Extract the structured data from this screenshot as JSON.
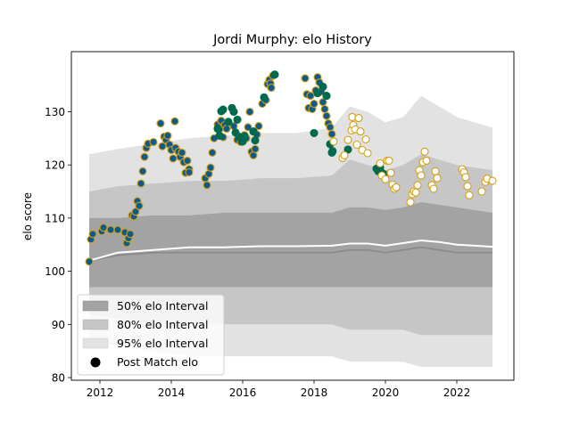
{
  "chart_data": {
    "type": "scatter",
    "title": "Jordi Murphy: elo History",
    "xlabel": "",
    "ylabel": "elo score",
    "xlim": [
      2011.2,
      2023.6
    ],
    "ylim": [
      79.5,
      141.3
    ],
    "x_ticks": [
      2012,
      2014,
      2016,
      2018,
      2020,
      2022
    ],
    "y_ticks": [
      80,
      90,
      100,
      110,
      120,
      130
    ],
    "grid": false,
    "legend": {
      "placement": "lower-left",
      "entries": [
        "50% elo Interval",
        "80% elo Interval",
        "95% elo Interval",
        "Post Match elo"
      ]
    },
    "colors": {
      "band_50": "#a3a3a3",
      "band_80": "#c6c6c6",
      "band_95": "#e2e2e2",
      "median_line": "#888888",
      "mean_line": "#ffffff",
      "team_a_fill": "#0e5a8a",
      "team_a_edge": "#d4a017",
      "team_b_fill": "#006a4e",
      "team_c_fill": "#ffffff",
      "team_c_edge": "#d4a017"
    },
    "bands": {
      "x": [
        2011.7,
        2012.5,
        2013.5,
        2014.5,
        2015.5,
        2016.5,
        2017.5,
        2018.5,
        2019.0,
        2019.5,
        2020.0,
        2020.5,
        2021.0,
        2021.5,
        2022.0,
        2022.5,
        2023.0
      ],
      "p95_hi": [
        122,
        123,
        124,
        125,
        125.5,
        126,
        126,
        127,
        131,
        130,
        128,
        129,
        133,
        131,
        129,
        128,
        127
      ],
      "p80_hi": [
        115,
        116,
        116.5,
        117,
        117,
        117.5,
        117.5,
        118,
        121,
        120,
        119,
        120,
        122,
        121,
        120,
        119.5,
        119
      ],
      "p50_hi": [
        110,
        110,
        110.5,
        110.5,
        111,
        111,
        111,
        111,
        112,
        112,
        111.5,
        112,
        113,
        112.5,
        112,
        111.5,
        111
      ],
      "p50_lo": [
        97,
        97,
        97,
        97,
        97,
        97,
        97,
        97,
        97,
        97,
        97,
        97,
        97,
        97,
        97,
        97,
        97
      ],
      "p80_lo": [
        92,
        91,
        90,
        90,
        90,
        90,
        90,
        90,
        89,
        89,
        89,
        89,
        88,
        88,
        88,
        88,
        88
      ],
      "p95_lo": [
        87,
        86,
        85,
        84,
        84,
        84,
        84,
        84,
        83,
        83,
        83,
        83,
        82,
        82,
        82,
        82,
        82
      ],
      "median": [
        102,
        103,
        103.5,
        103.5,
        103.5,
        103.5,
        103.5,
        103.5,
        104,
        104,
        103.5,
        104,
        104.5,
        104,
        103.5,
        103.5,
        103.5
      ],
      "mean": [
        102,
        103.5,
        104,
        104.5,
        104.5,
        104.7,
        104.7,
        104.8,
        105.2,
        105.2,
        104.8,
        105.3,
        105.8,
        105.5,
        105,
        104.8,
        104.6
      ]
    },
    "series": [
      {
        "marker": "team_a",
        "points": [
          [
            2011.7,
            101.8
          ],
          [
            2011.75,
            106
          ],
          [
            2011.8,
            107
          ],
          [
            2012.05,
            107.5
          ],
          [
            2012.1,
            108.2
          ],
          [
            2012.3,
            107.8
          ],
          [
            2012.5,
            107.8
          ],
          [
            2012.7,
            107.3
          ],
          [
            2012.75,
            105.3
          ],
          [
            2012.8,
            106.2
          ],
          [
            2012.85,
            107
          ],
          [
            2012.9,
            110.5
          ],
          [
            2012.95,
            110.3
          ],
          [
            2013.0,
            111.2
          ],
          [
            2013.05,
            113.2
          ],
          [
            2013.1,
            112.3
          ],
          [
            2013.15,
            116.5
          ],
          [
            2013.2,
            118.8
          ],
          [
            2013.25,
            121.5
          ],
          [
            2013.3,
            123.2
          ],
          [
            2013.35,
            124
          ],
          [
            2013.5,
            124.3
          ],
          [
            2013.7,
            127.8
          ],
          [
            2013.75,
            123.5
          ],
          [
            2013.8,
            125.3
          ],
          [
            2013.85,
            124.7
          ],
          [
            2013.9,
            125.5
          ],
          [
            2013.95,
            123.8
          ],
          [
            2014.0,
            122.8
          ],
          [
            2014.05,
            121.2
          ],
          [
            2014.1,
            128.2
          ],
          [
            2014.12,
            123.2
          ],
          [
            2014.2,
            122.5
          ],
          [
            2014.25,
            121.5
          ],
          [
            2014.3,
            122.3
          ],
          [
            2014.35,
            120.5
          ],
          [
            2014.4,
            118.5
          ],
          [
            2014.45,
            120.8
          ],
          [
            2014.5,
            119.2
          ],
          [
            2014.5,
            118.6
          ],
          [
            2014.95,
            117.5
          ],
          [
            2015.0,
            116.2
          ],
          [
            2015.05,
            118.3
          ],
          [
            2015.1,
            119.5
          ],
          [
            2015.15,
            122.3
          ],
          [
            2015.2,
            125
          ],
          [
            2015.3,
            127.6
          ],
          [
            2015.35,
            126.7
          ],
          [
            2015.4,
            128.3
          ],
          [
            2015.45,
            125.2
          ],
          [
            2015.5,
            127.5
          ],
          [
            2015.55,
            126.8
          ],
          [
            2015.75,
            127.3
          ],
          [
            2015.85,
            124.7
          ],
          [
            2015.95,
            124.3
          ],
          [
            2016.05,
            125.6
          ],
          [
            2016.1,
            125
          ],
          [
            2016.15,
            127.1
          ],
          [
            2016.2,
            130
          ],
          [
            2016.25,
            122.5
          ],
          [
            2016.3,
            121.8
          ],
          [
            2016.35,
            123
          ],
          [
            2016.4,
            125.7
          ],
          [
            2016.45,
            127.3
          ],
          [
            2016.55,
            131.5
          ],
          [
            2016.65,
            132.2
          ],
          [
            2016.7,
            135.2
          ],
          [
            2016.75,
            136
          ],
          [
            2016.78,
            135.3
          ],
          [
            2016.8,
            134.5
          ],
          [
            2016.85,
            136.8
          ],
          [
            2017.75,
            136.3
          ],
          [
            2017.8,
            133.3
          ],
          [
            2017.85,
            130.7
          ],
          [
            2017.9,
            133
          ],
          [
            2017.95,
            130.5
          ],
          [
            2018.0,
            131.5
          ],
          [
            2018.05,
            134
          ],
          [
            2018.1,
            136.5
          ],
          [
            2018.15,
            135.5
          ],
          [
            2018.2,
            133.8
          ],
          [
            2018.25,
            131.8
          ],
          [
            2018.3,
            130.5
          ],
          [
            2018.35,
            129.2
          ],
          [
            2018.4,
            127.8
          ],
          [
            2018.45,
            127.1
          ],
          [
            2018.5,
            125.8
          ]
        ]
      },
      {
        "marker": "team_b",
        "points": [
          [
            2015.3,
            126.8
          ],
          [
            2015.35,
            125.5
          ],
          [
            2015.4,
            130.1
          ],
          [
            2015.45,
            130.4
          ],
          [
            2015.6,
            128.1
          ],
          [
            2015.7,
            130.7
          ],
          [
            2015.75,
            130
          ],
          [
            2015.8,
            126.1
          ],
          [
            2015.85,
            128.5
          ],
          [
            2015.9,
            125.3
          ],
          [
            2016.0,
            124.4
          ],
          [
            2016.05,
            125.4
          ],
          [
            2016.3,
            126.3
          ],
          [
            2016.35,
            124.6
          ],
          [
            2016.6,
            132.7
          ],
          [
            2016.9,
            137
          ],
          [
            2018.0,
            126
          ],
          [
            2018.1,
            133.5
          ],
          [
            2018.25,
            134.7
          ],
          [
            2018.35,
            133
          ],
          [
            2018.45,
            123.9
          ],
          [
            2018.5,
            122.3
          ],
          [
            2018.52,
            122.6
          ],
          [
            2018.95,
            122.9
          ],
          [
            2019.75,
            119.3
          ],
          [
            2019.8,
            118.8
          ],
          [
            2019.85,
            119.5
          ],
          [
            2019.9,
            118.5
          ],
          [
            2019.95,
            118.3
          ]
        ]
      },
      {
        "marker": "team_c",
        "points": [
          [
            2018.55,
            124.4
          ],
          [
            2018.8,
            121.3
          ],
          [
            2018.85,
            121.8
          ],
          [
            2018.95,
            124.7
          ],
          [
            2019.05,
            126.5
          ],
          [
            2019.07,
            129
          ],
          [
            2019.1,
            127.5
          ],
          [
            2019.15,
            126.7
          ],
          [
            2019.2,
            123.8
          ],
          [
            2019.25,
            128.8
          ],
          [
            2019.3,
            126.3
          ],
          [
            2019.35,
            122.8
          ],
          [
            2019.45,
            124.8
          ],
          [
            2019.5,
            122.2
          ],
          [
            2019.85,
            120.3
          ],
          [
            2019.9,
            118
          ],
          [
            2020.0,
            117.3
          ],
          [
            2020.05,
            120.8
          ],
          [
            2020.1,
            120.8
          ],
          [
            2020.15,
            118.5
          ],
          [
            2020.2,
            116.3
          ],
          [
            2020.25,
            115.5
          ],
          [
            2020.3,
            115.8
          ],
          [
            2020.7,
            113
          ],
          [
            2020.75,
            114.5
          ],
          [
            2020.8,
            115
          ],
          [
            2020.85,
            114.8
          ],
          [
            2020.9,
            116.2
          ],
          [
            2020.95,
            119
          ],
          [
            2021.0,
            118
          ],
          [
            2021.05,
            120.5
          ],
          [
            2021.1,
            122.5
          ],
          [
            2021.15,
            120.8
          ],
          [
            2021.3,
            116.2
          ],
          [
            2021.35,
            115.5
          ],
          [
            2021.4,
            118.8
          ],
          [
            2021.45,
            117.5
          ],
          [
            2022.15,
            119.2
          ],
          [
            2022.2,
            118.6
          ],
          [
            2022.25,
            117.7
          ],
          [
            2022.3,
            116
          ],
          [
            2022.35,
            114.3
          ],
          [
            2022.7,
            115
          ],
          [
            2022.8,
            116.8
          ],
          [
            2022.85,
            117.4
          ],
          [
            2023.0,
            117
          ]
        ]
      }
    ]
  }
}
